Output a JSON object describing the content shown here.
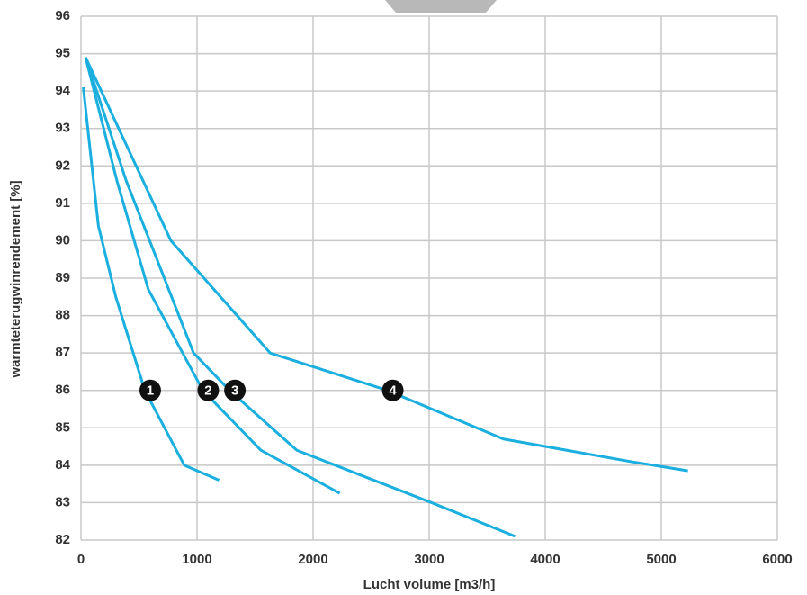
{
  "chart_data": {
    "type": "line",
    "xlabel": "Lucht volume [m3/h]",
    "ylabel": "warmteterugwinrendement [%]",
    "xlim": [
      0,
      6000
    ],
    "xticks": [
      0,
      1000,
      2000,
      3000,
      4000,
      5000,
      6000
    ],
    "ylim": [
      82,
      96
    ],
    "yticks": [
      82,
      83,
      84,
      85,
      86,
      87,
      88,
      89,
      90,
      91,
      92,
      93,
      94,
      95,
      96
    ],
    "grid": true,
    "series": [
      {
        "name": "1",
        "color": "#1aafdf",
        "x": [
          20,
          150,
          300,
          550,
          890,
          1190
        ],
        "values": [
          94.1,
          90.4,
          88.5,
          86,
          84.0,
          83.6
        ]
      },
      {
        "name": "2",
        "color": "#1aafdf",
        "x": [
          40,
          310,
          580,
          1050,
          1550,
          2230
        ],
        "values": [
          94.9,
          91.6,
          88.7,
          86,
          84.4,
          83.25
        ]
      },
      {
        "name": "3",
        "color": "#1aafdf",
        "x": [
          40,
          390,
          970,
          1280,
          1860,
          3020,
          3740
        ],
        "values": [
          94.9,
          91.6,
          87.0,
          86,
          84.4,
          83.0,
          82.1
        ]
      },
      {
        "name": "4",
        "color": "#1aafdf",
        "x": [
          40,
          775,
          1630,
          2640,
          3640,
          4730,
          5230
        ],
        "values": [
          94.9,
          90.0,
          87.0,
          86,
          84.7,
          84.1,
          83.85
        ]
      }
    ]
  }
}
